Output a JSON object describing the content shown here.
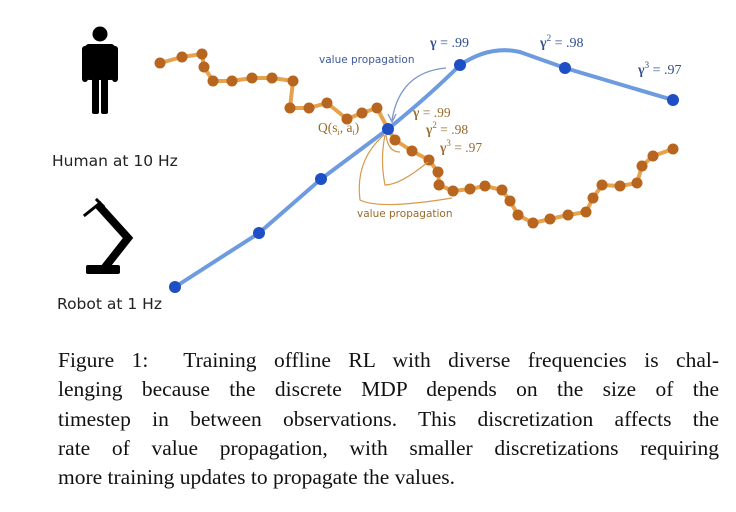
{
  "figure": {
    "human_label": "Human at 10 Hz",
    "robot_label": "Robot at 1 Hz",
    "q_label": "Q(s",
    "q_sub_i": "i",
    "q_mid": ", a",
    "q_sub_i2": "i",
    "q_end": ")",
    "blue_value_propagation": "value propagation",
    "orange_value_propagation": "value propagation",
    "blue_gammas": [
      {
        "base": "γ",
        "exp": "",
        "value": " = .99"
      },
      {
        "base": "γ",
        "exp": "2",
        "value": " = .98"
      },
      {
        "base": "γ",
        "exp": "3",
        "value": " = .97"
      }
    ],
    "orange_gammas": [
      {
        "base": "γ",
        "exp": "",
        "value": " = .99"
      },
      {
        "base": "γ",
        "exp": "2",
        "value": " = .98"
      },
      {
        "base": "γ",
        "exp": "3",
        "value": " = .97"
      }
    ],
    "colors": {
      "blue_line": "#6e9be0",
      "blue_dot": "#1f4fc4",
      "orange_line": "#e6a24c",
      "orange_dot": "#b8651f",
      "blue_text": "#3d5a99",
      "orange_text": "#9a6a2c"
    }
  },
  "caption": {
    "label": "Figure 1:",
    "lines": [
      "Training offline RL with diverse frequencies is chal-",
      "lenging because the discrete MDP depends on the size of the",
      "timestep in between observations.  This discretization affects the",
      "rate of value propagation, with smaller discretizations requiring",
      "more training updates to propagate the values."
    ]
  }
}
